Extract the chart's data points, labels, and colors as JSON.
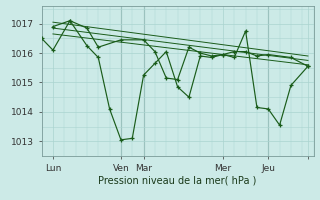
{
  "title": "Pression niveau de la mer( hPa )",
  "bg_color": "#cceae7",
  "grid_color": "#aad4d0",
  "line_color": "#1a5c1a",
  "vline_color": "#7a9a98",
  "ylim": [
    1012.5,
    1017.6
  ],
  "yticks": [
    1013,
    1014,
    1015,
    1016,
    1017
  ],
  "xlim": [
    0,
    48
  ],
  "xtick_positions": [
    2,
    14,
    18,
    32,
    40,
    47
  ],
  "xtick_labels": [
    "Lun",
    "Ven",
    "Mar",
    "Mer",
    "Jeu",
    ""
  ],
  "vline_positions": [
    14,
    18,
    40
  ],
  "trend1_x": [
    2,
    47
  ],
  "trend1_y": [
    1017.05,
    1015.9
  ],
  "trend2_x": [
    2,
    47
  ],
  "trend2_y": [
    1016.85,
    1015.75
  ],
  "trend3_x": [
    2,
    47
  ],
  "trend3_y": [
    1016.65,
    1015.6
  ],
  "main_line_x": [
    0,
    2,
    5,
    8,
    10,
    12,
    14,
    16,
    18,
    20,
    22,
    24,
    26,
    28,
    30,
    32,
    34,
    36,
    38,
    40,
    42,
    44,
    47
  ],
  "main_line_y": [
    1016.5,
    1016.1,
    1017.1,
    1016.25,
    1015.85,
    1014.1,
    1013.05,
    1013.1,
    1015.25,
    1015.65,
    1016.05,
    1014.85,
    1014.5,
    1015.9,
    1015.85,
    1015.95,
    1015.85,
    1016.75,
    1014.15,
    1014.1,
    1013.55,
    1014.9,
    1015.55
  ],
  "upper_line_x": [
    2,
    5,
    8,
    10,
    14,
    18,
    20,
    22,
    24,
    26,
    28,
    30,
    32,
    34,
    36,
    38,
    40,
    44,
    47
  ],
  "upper_line_y": [
    1016.9,
    1017.1,
    1016.85,
    1016.2,
    1016.45,
    1016.45,
    1016.05,
    1015.15,
    1015.1,
    1016.2,
    1016.0,
    1015.9,
    1015.95,
    1016.05,
    1016.05,
    1015.9,
    1015.95,
    1015.85,
    1015.55
  ],
  "figsize": [
    3.2,
    2.0
  ],
  "dpi": 100,
  "xlabel_fontsize": 7,
  "tick_fontsize": 6.5
}
